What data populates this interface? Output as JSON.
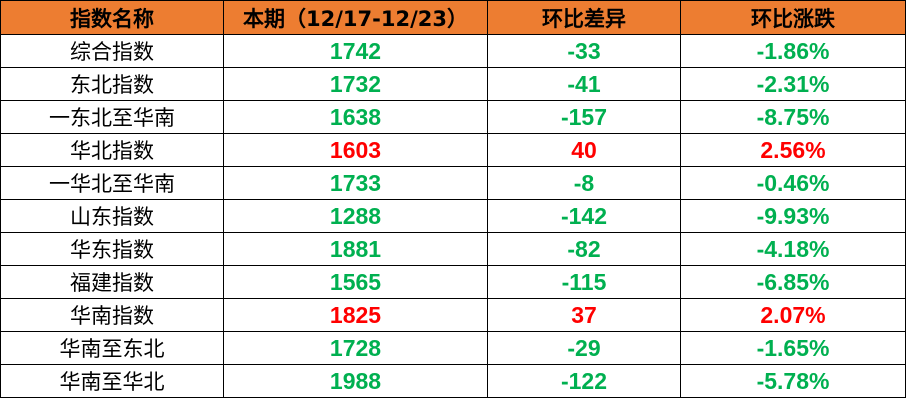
{
  "colors": {
    "header_bg": "#ED7D31",
    "down": "#00B050",
    "up": "#FF0000"
  },
  "headers": [
    "指数名称",
    "本期（12/17-12/23）",
    "环比差异",
    "环比涨跌"
  ],
  "rows": [
    {
      "name": "综合指数",
      "value": "1742",
      "diff": "-33",
      "pct": "-1.86%",
      "dir": "down"
    },
    {
      "name": "东北指数",
      "value": "1732",
      "diff": "-41",
      "pct": "-2.31%",
      "dir": "down"
    },
    {
      "name": "一东北至华南",
      "value": "1638",
      "diff": "-157",
      "pct": "-8.75%",
      "dir": "down"
    },
    {
      "name": "华北指数",
      "value": "1603",
      "diff": "40",
      "pct": "2.56%",
      "dir": "up"
    },
    {
      "name": "一华北至华南",
      "value": "1733",
      "diff": "-8",
      "pct": "-0.46%",
      "dir": "down"
    },
    {
      "name": "山东指数",
      "value": "1288",
      "diff": "-142",
      "pct": "-9.93%",
      "dir": "down"
    },
    {
      "name": "华东指数",
      "value": "1881",
      "diff": "-82",
      "pct": "-4.18%",
      "dir": "down"
    },
    {
      "name": "福建指数",
      "value": "1565",
      "diff": "-115",
      "pct": "-6.85%",
      "dir": "down"
    },
    {
      "name": "华南指数",
      "value": "1825",
      "diff": "37",
      "pct": "2.07%",
      "dir": "up"
    },
    {
      "name": "华南至东北",
      "value": "1728",
      "diff": "-29",
      "pct": "-1.65%",
      "dir": "down"
    },
    {
      "name": "华南至华北",
      "value": "1988",
      "diff": "-122",
      "pct": "-5.78%",
      "dir": "down"
    }
  ]
}
